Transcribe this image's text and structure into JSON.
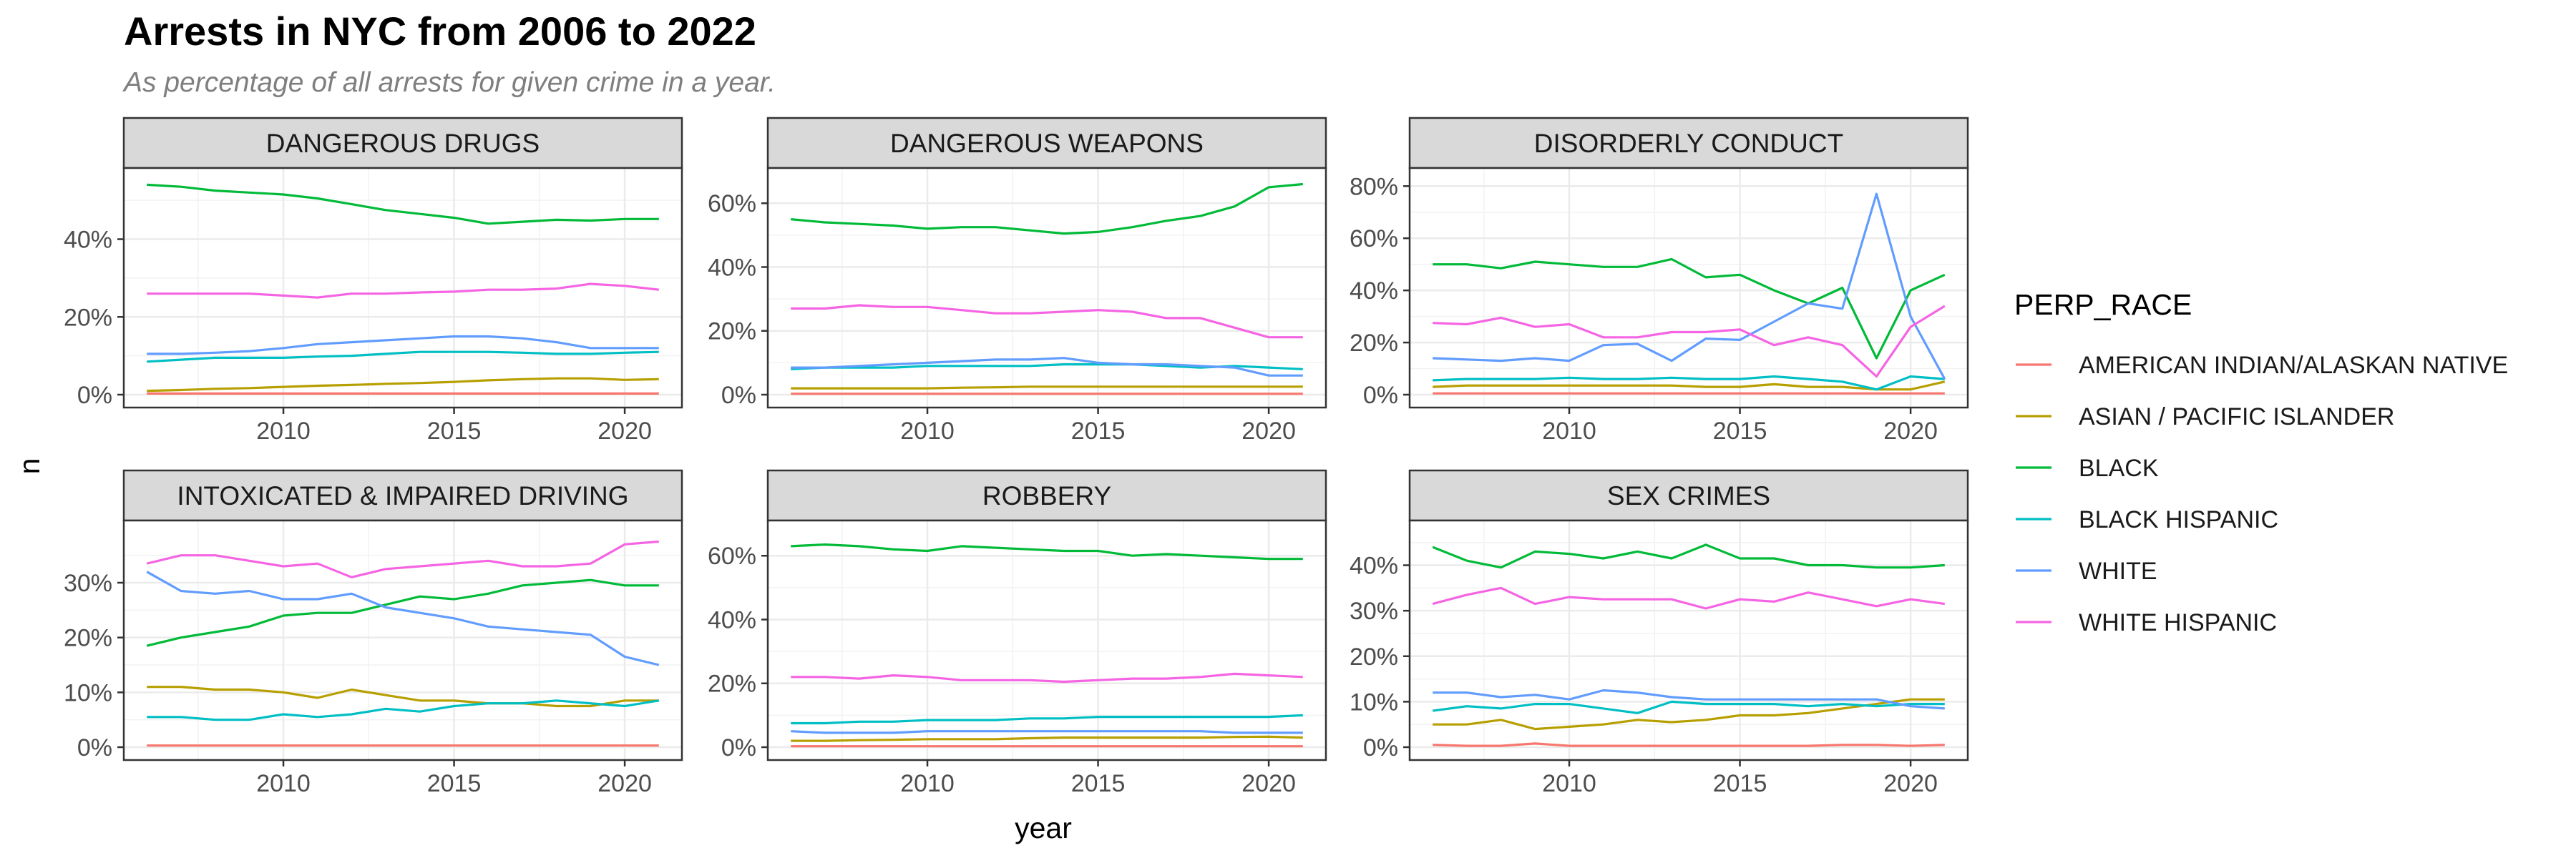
{
  "title": "Arrests in NYC from 2006 to 2022",
  "subtitle": "As percentage of all arrests for given crime in a year.",
  "chart_data": {
    "type": "line",
    "xlabel": "year",
    "ylabel": "n",
    "xlim": [
      2006,
      2021
    ],
    "x": [
      2006,
      2007,
      2008,
      2009,
      2010,
      2011,
      2012,
      2013,
      2014,
      2015,
      2016,
      2017,
      2018,
      2019,
      2020,
      2021
    ],
    "x_ticks": [
      2010,
      2015,
      2020
    ],
    "legend": {
      "title": "PERP_RACE",
      "position": "right",
      "entries": [
        {
          "name": "AMERICAN INDIAN/ALASKAN NATIVE",
          "color": "#F8766D"
        },
        {
          "name": "ASIAN / PACIFIC ISLANDER",
          "color": "#B79F00"
        },
        {
          "name": "BLACK",
          "color": "#00BA38"
        },
        {
          "name": "BLACK HISPANIC",
          "color": "#00BFC4"
        },
        {
          "name": "WHITE",
          "color": "#619CFF"
        },
        {
          "name": "WHITE HISPANIC",
          "color": "#F564E3"
        }
      ]
    },
    "panels": [
      {
        "name": "DANGEROUS DRUGS",
        "ylim": [
          0,
          55
        ],
        "y_ticks": [
          0,
          20,
          40
        ],
        "y_tick_labels": [
          "0%",
          "20%",
          "40%"
        ],
        "series": [
          {
            "name": "AMERICAN INDIAN/ALASKAN NATIVE",
            "values": [
              0.3,
              0.3,
              0.3,
              0.3,
              0.3,
              0.3,
              0.3,
              0.3,
              0.3,
              0.3,
              0.3,
              0.3,
              0.3,
              0.3,
              0.3,
              0.3
            ]
          },
          {
            "name": "ASIAN / PACIFIC ISLANDER",
            "values": [
              1,
              1.2,
              1.5,
              1.7,
              2,
              2.3,
              2.5,
              2.8,
              3,
              3.3,
              3.7,
              4,
              4.2,
              4.2,
              3.8,
              4
            ]
          },
          {
            "name": "BLACK",
            "values": [
              54,
              53.5,
              52.5,
              52,
              51.5,
              50.5,
              49,
              47.5,
              46.5,
              45.5,
              44,
              44.5,
              45,
              44.8,
              45.2,
              45.2
            ]
          },
          {
            "name": "BLACK HISPANIC",
            "values": [
              8.5,
              9,
              9.5,
              9.5,
              9.5,
              9.8,
              10,
              10.5,
              11,
              11,
              11,
              10.8,
              10.5,
              10.5,
              10.8,
              11
            ]
          },
          {
            "name": "WHITE",
            "values": [
              10.5,
              10.5,
              10.8,
              11.2,
              12,
              13,
              13.5,
              14,
              14.5,
              15,
              15,
              14.5,
              13.5,
              12,
              12,
              12
            ]
          },
          {
            "name": "WHITE HISPANIC",
            "values": [
              26,
              26,
              26,
              26,
              25.5,
              25,
              26,
              26,
              26.3,
              26.5,
              27,
              27,
              27.3,
              28.5,
              28,
              27
            ]
          }
        ]
      },
      {
        "name": "DANGEROUS WEAPONS",
        "ylim": [
          0,
          67
        ],
        "y_ticks": [
          0,
          20,
          40,
          60
        ],
        "y_tick_labels": [
          "0%",
          "20%",
          "40%",
          "60%"
        ],
        "series": [
          {
            "name": "AMERICAN INDIAN/ALASKAN NATIVE",
            "values": [
              0.3,
              0.3,
              0.3,
              0.3,
              0.3,
              0.3,
              0.3,
              0.3,
              0.3,
              0.3,
              0.3,
              0.3,
              0.3,
              0.3,
              0.3,
              0.3
            ]
          },
          {
            "name": "ASIAN / PACIFIC ISLANDER",
            "values": [
              2,
              2,
              2,
              2,
              2,
              2.2,
              2.3,
              2.5,
              2.5,
              2.5,
              2.5,
              2.5,
              2.5,
              2.5,
              2.5,
              2.5
            ]
          },
          {
            "name": "BLACK",
            "values": [
              55,
              54,
              53.5,
              53,
              52,
              52.5,
              52.5,
              51.5,
              50.5,
              51,
              52.5,
              54.5,
              56,
              59,
              65,
              66
            ]
          },
          {
            "name": "BLACK HISPANIC",
            "values": [
              8,
              8.5,
              8.5,
              8.5,
              9,
              9,
              9,
              9,
              9.5,
              9.5,
              9.5,
              9,
              8.5,
              9,
              8.5,
              8
            ]
          },
          {
            "name": "WHITE",
            "values": [
              8.5,
              8.5,
              9,
              9.5,
              10,
              10.5,
              11,
              11,
              11.5,
              10,
              9.5,
              9.5,
              9,
              8.5,
              6,
              6
            ]
          },
          {
            "name": "WHITE HISPANIC",
            "values": [
              27,
              27,
              28,
              27.5,
              27.5,
              26.5,
              25.5,
              25.5,
              26,
              26.5,
              26,
              24,
              24,
              21,
              18,
              18
            ]
          }
        ]
      },
      {
        "name": "DISORDERLY CONDUCT",
        "ylim": [
          0,
          82
        ],
        "y_ticks": [
          0,
          20,
          40,
          60,
          80
        ],
        "y_tick_labels": [
          "0%",
          "20%",
          "40%",
          "60%",
          "80%"
        ],
        "series": [
          {
            "name": "AMERICAN INDIAN/ALASKAN NATIVE",
            "values": [
              0.5,
              0.5,
              0.5,
              0.5,
              0.5,
              0.5,
              0.5,
              0.5,
              0.5,
              0.5,
              0.5,
              0.5,
              0.5,
              0.5,
              0.5,
              0.5
            ]
          },
          {
            "name": "ASIAN / PACIFIC ISLANDER",
            "values": [
              3,
              3.5,
              3.5,
              3.5,
              3.5,
              3.5,
              3.5,
              3.5,
              3,
              3,
              4,
              3,
              3,
              2,
              2,
              5
            ]
          },
          {
            "name": "BLACK",
            "values": [
              50,
              50,
              48.5,
              51,
              50,
              49,
              49,
              52,
              45,
              46,
              40,
              35,
              41,
              14,
              40,
              46
            ]
          },
          {
            "name": "BLACK HISPANIC",
            "values": [
              5.5,
              6,
              6,
              6,
              6.5,
              6,
              6,
              6.5,
              6,
              6,
              7,
              6,
              5,
              2,
              7,
              6
            ]
          },
          {
            "name": "WHITE",
            "values": [
              14,
              13.5,
              13,
              14,
              13,
              19,
              19.5,
              13,
              21.5,
              21,
              28,
              35,
              33,
              77,
              30,
              6
            ]
          },
          {
            "name": "WHITE HISPANIC",
            "values": [
              27.5,
              27,
              29.5,
              26,
              27,
              22,
              22,
              24,
              24,
              25,
              19,
              22,
              19,
              7,
              26,
              34
            ]
          }
        ]
      },
      {
        "name": "INTOXICATED & IMPAIRED DRIVING",
        "ylim": [
          0,
          39
        ],
        "y_ticks": [
          0,
          10,
          20,
          30
        ],
        "y_tick_labels": [
          "0%",
          "10%",
          "20%",
          "30%"
        ],
        "series": [
          {
            "name": "AMERICAN INDIAN/ALASKAN NATIVE",
            "values": [
              0.3,
              0.3,
              0.3,
              0.3,
              0.3,
              0.3,
              0.3,
              0.3,
              0.3,
              0.3,
              0.3,
              0.3,
              0.3,
              0.3,
              0.3,
              0.3
            ]
          },
          {
            "name": "ASIAN / PACIFIC ISLANDER",
            "values": [
              11,
              11,
              10.5,
              10.5,
              10,
              9,
              10.5,
              9.5,
              8.5,
              8.5,
              8,
              8,
              7.5,
              7.5,
              8.5,
              8.5
            ]
          },
          {
            "name": "BLACK",
            "values": [
              18.5,
              20,
              21,
              22,
              24,
              24.5,
              24.5,
              26,
              27.5,
              27,
              28,
              29.5,
              30,
              30.5,
              29.5,
              29.5
            ]
          },
          {
            "name": "BLACK HISPANIC",
            "values": [
              5.5,
              5.5,
              5,
              5,
              6,
              5.5,
              6,
              7,
              6.5,
              7.5,
              8,
              8,
              8.5,
              8,
              7.5,
              8.5
            ]
          },
          {
            "name": "WHITE",
            "values": [
              32,
              28.5,
              28,
              28.5,
              27,
              27,
              28,
              25.5,
              24.5,
              23.5,
              22,
              21.5,
              21,
              20.5,
              16.5,
              15
            ]
          },
          {
            "name": "WHITE HISPANIC",
            "values": [
              33.5,
              35,
              35,
              34,
              33,
              33.5,
              31,
              32.5,
              33,
              33.5,
              34,
              33,
              33,
              33.5,
              37,
              37.5
            ]
          }
        ]
      },
      {
        "name": "ROBBERY",
        "ylim": [
          0,
          67
        ],
        "y_ticks": [
          0,
          20,
          40,
          60
        ],
        "y_tick_labels": [
          "0%",
          "20%",
          "40%",
          "60%"
        ],
        "series": [
          {
            "name": "AMERICAN INDIAN/ALASKAN NATIVE",
            "values": [
              0.3,
              0.3,
              0.3,
              0.3,
              0.3,
              0.3,
              0.3,
              0.3,
              0.3,
              0.3,
              0.3,
              0.3,
              0.3,
              0.3,
              0.3,
              0.3
            ]
          },
          {
            "name": "ASIAN / PACIFIC ISLANDER",
            "values": [
              2,
              2,
              2.2,
              2.3,
              2.5,
              2.5,
              2.5,
              2.8,
              3,
              3,
              3,
              3,
              3,
              3.2,
              3.3,
              3
            ]
          },
          {
            "name": "BLACK",
            "values": [
              63,
              63.5,
              63,
              62,
              61.5,
              63,
              62.5,
              62,
              61.5,
              61.5,
              60,
              60.5,
              60,
              59.5,
              59,
              59
            ]
          },
          {
            "name": "BLACK HISPANIC",
            "values": [
              7.5,
              7.5,
              8,
              8,
              8.5,
              8.5,
              8.5,
              9,
              9,
              9.5,
              9.5,
              9.5,
              9.5,
              9.5,
              9.5,
              10
            ]
          },
          {
            "name": "WHITE",
            "values": [
              5,
              4.5,
              4.5,
              4.5,
              5,
              5,
              5,
              5,
              5,
              5,
              5,
              5,
              5,
              4.5,
              4.5,
              4.5
            ]
          },
          {
            "name": "WHITE HISPANIC",
            "values": [
              22,
              22,
              21.5,
              22.5,
              22,
              21,
              21,
              21,
              20.5,
              21,
              21.5,
              21.5,
              22,
              23,
              22.5,
              22
            ]
          }
        ]
      },
      {
        "name": "SEX CRIMES",
        "ylim": [
          0,
          47
        ],
        "y_ticks": [
          0,
          10,
          20,
          30,
          40
        ],
        "y_tick_labels": [
          "0%",
          "10%",
          "20%",
          "30%",
          "40%"
        ],
        "series": [
          {
            "name": "AMERICAN INDIAN/ALASKAN NATIVE",
            "values": [
              0.5,
              0.3,
              0.3,
              0.8,
              0.3,
              0.3,
              0.3,
              0.3,
              0.3,
              0.3,
              0.3,
              0.3,
              0.5,
              0.5,
              0.3,
              0.5
            ]
          },
          {
            "name": "ASIAN / PACIFIC ISLANDER",
            "values": [
              5,
              5,
              6,
              4,
              4.5,
              5,
              6,
              5.5,
              6,
              7,
              7,
              7.5,
              8.5,
              9.5,
              10.5,
              10.5
            ]
          },
          {
            "name": "BLACK",
            "values": [
              44,
              41,
              39.5,
              43,
              42.5,
              41.5,
              43,
              41.5,
              44.5,
              41.5,
              41.5,
              40,
              40,
              39.5,
              39.5,
              40
            ]
          },
          {
            "name": "BLACK HISPANIC",
            "values": [
              8,
              9,
              8.5,
              9.5,
              9.5,
              8.5,
              7.5,
              10,
              9.5,
              9.5,
              9.5,
              9,
              9.5,
              9,
              9.5,
              9.5
            ]
          },
          {
            "name": "WHITE",
            "values": [
              12,
              12,
              11,
              11.5,
              10.5,
              12.5,
              12,
              11,
              10.5,
              10.5,
              10.5,
              10.5,
              10.5,
              10.5,
              9,
              8.5
            ]
          },
          {
            "name": "WHITE HISPANIC",
            "values": [
              31.5,
              33.5,
              35,
              31.5,
              33,
              32.5,
              32.5,
              32.5,
              30.5,
              32.5,
              32,
              34,
              32.5,
              31,
              32.5,
              31.5
            ]
          }
        ]
      }
    ]
  }
}
